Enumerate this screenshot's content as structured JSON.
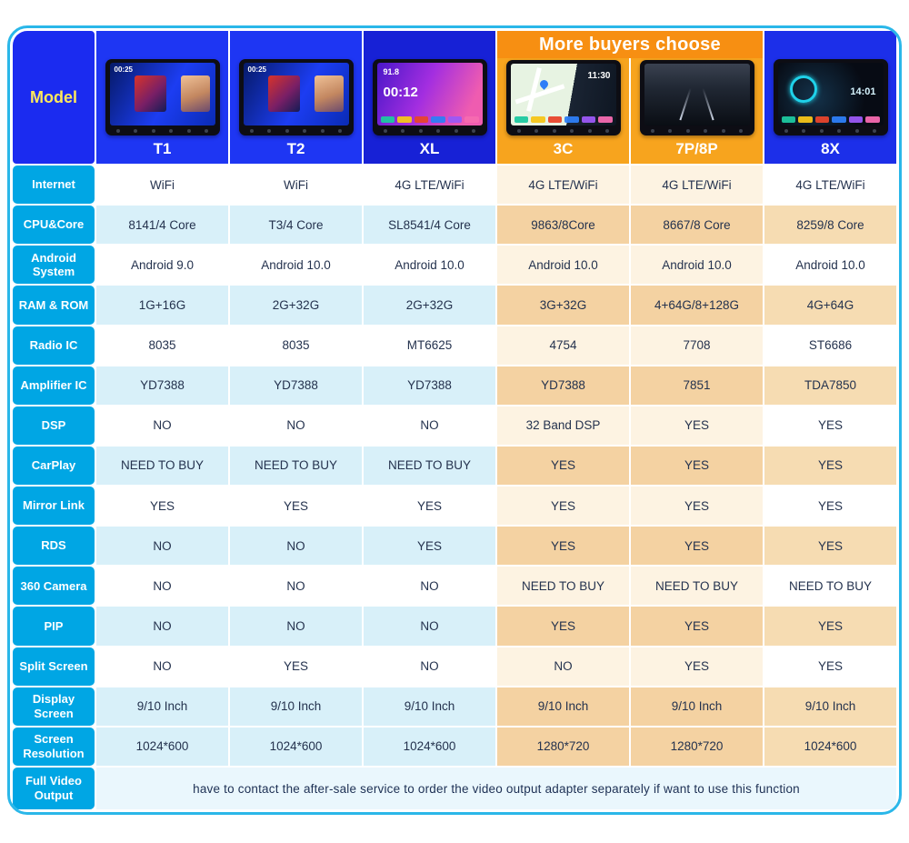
{
  "model_label": "Model",
  "banner": {
    "text": "More buyers choose"
  },
  "columns": [
    {
      "name": "T1",
      "header_bg": "#1e36f3",
      "group": "cool",
      "screen": "media",
      "time": "00:25"
    },
    {
      "name": "T2",
      "header_bg": "#1e36f3",
      "group": "cool",
      "screen": "media",
      "time": "00:25"
    },
    {
      "name": "XL",
      "header_bg": "#1721d6",
      "group": "cool",
      "screen": "radio",
      "time": "00:12",
      "freq": "91.8"
    },
    {
      "name": "3C",
      "header_bg": "#f7a41e",
      "group": "warm",
      "screen": "map",
      "time": "11:30",
      "under_banner": true
    },
    {
      "name": "7P/8P",
      "header_bg": "#f7a41e",
      "group": "warm",
      "screen": "dvr",
      "under_banner": true
    },
    {
      "name": "8X",
      "header_bg": "#1c2fe9",
      "group": "warm8x",
      "screen": "gauge",
      "time": "14:01"
    }
  ],
  "rows": [
    {
      "label": "Internet",
      "tint": false,
      "values": [
        "WiFi",
        "WiFi",
        "4G LTE/WiFi",
        "4G LTE/WiFi",
        "4G LTE/WiFi",
        "4G LTE/WiFi"
      ]
    },
    {
      "label": "CPU&Core",
      "tint": true,
      "values": [
        "8141/4 Core",
        "T3/4 Core",
        "SL8541/4 Core",
        "9863/8Core",
        "8667/8 Core",
        "8259/8 Core"
      ]
    },
    {
      "label": "Android System",
      "tint": false,
      "values": [
        "Android 9.0",
        "Android 10.0",
        "Android 10.0",
        "Android 10.0",
        "Android 10.0",
        "Android 10.0"
      ]
    },
    {
      "label": "RAM & ROM",
      "tint": true,
      "values": [
        "1G+16G",
        "2G+32G",
        "2G+32G",
        "3G+32G",
        "4+64G/8+128G",
        "4G+64G"
      ]
    },
    {
      "label": "Radio IC",
      "tint": false,
      "values": [
        "8035",
        "8035",
        "MT6625",
        "4754",
        "7708",
        "ST6686"
      ]
    },
    {
      "label": "Amplifier IC",
      "tint": true,
      "values": [
        "YD7388",
        "YD7388",
        "YD7388",
        "YD7388",
        "7851",
        "TDA7850"
      ]
    },
    {
      "label": "DSP",
      "tint": false,
      "values": [
        "NO",
        "NO",
        "NO",
        "32 Band DSP",
        "YES",
        "YES"
      ]
    },
    {
      "label": "CarPlay",
      "tint": true,
      "values": [
        "NEED TO BUY",
        "NEED TO BUY",
        "NEED TO BUY",
        "YES",
        "YES",
        "YES"
      ]
    },
    {
      "label": "Mirror Link",
      "tint": false,
      "values": [
        "YES",
        "YES",
        "YES",
        "YES",
        "YES",
        "YES"
      ]
    },
    {
      "label": "RDS",
      "tint": true,
      "values": [
        "NO",
        "NO",
        "YES",
        "YES",
        "YES",
        "YES"
      ]
    },
    {
      "label": "360 Camera",
      "tint": false,
      "values": [
        "NO",
        "NO",
        "NO",
        "NEED TO BUY",
        "NEED TO BUY",
        "NEED TO BUY"
      ]
    },
    {
      "label": "PIP",
      "tint": true,
      "values": [
        "NO",
        "NO",
        "NO",
        "YES",
        "YES",
        "YES"
      ]
    },
    {
      "label": "Split Screen",
      "tint": false,
      "values": [
        "NO",
        "YES",
        "NO",
        "NO",
        "YES",
        "YES"
      ]
    },
    {
      "label": "Display Screen",
      "tint": true,
      "values": [
        "9/10 Inch",
        "9/10 Inch",
        "9/10 Inch",
        "9/10 Inch",
        "9/10 Inch",
        "9/10 Inch"
      ]
    },
    {
      "label": "Screen Resolution",
      "tint": true,
      "values": [
        "1024*600",
        "1024*600",
        "1024*600",
        "1280*720",
        "1280*720",
        "1024*600"
      ]
    }
  ],
  "footer": {
    "label": "Full Video Output",
    "text": "have to contact the after-sale service to order the video output adapter separately if want to use this function"
  },
  "colors": {
    "frame_border": "#2ab7e9",
    "label_bg": "#00a6e4",
    "model_bg": "#1b2bf0",
    "model_text": "#ffe95c",
    "banner_bg": "#f78f12",
    "cool_tint": "#d8f0f9",
    "warm_tint": "#f4d2a2",
    "warm_light": "#fdf3e2",
    "warm8x_tint": "#f6dcb2",
    "white_cell": "#ffffff",
    "footer_bg": "#eaf7fd",
    "app_dots": [
      "#1ec8a0",
      "#f5c518",
      "#e8452c",
      "#2d7ef7",
      "#9b59f5",
      "#f56ab0"
    ]
  }
}
